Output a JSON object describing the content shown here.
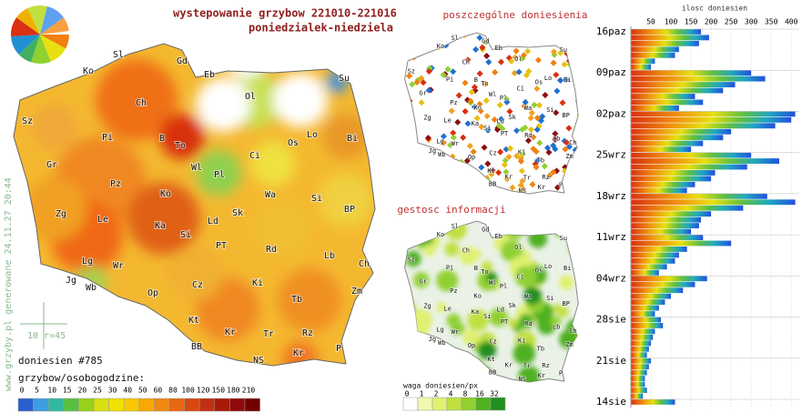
{
  "title": "wystepowanie grzybow 221010-221016",
  "subtitle": "poniedzialek-niedziela",
  "watermark": "www.grzyby.pl generowane 24.11.27 20:44",
  "main_map": {
    "regions": [
      "Ko",
      "Sl",
      "Gd",
      "Eb",
      "Su",
      "Ol",
      "Ch",
      "Sz",
      "Pi",
      "B",
      "To",
      "Os",
      "Lo",
      "Bi",
      "Gr",
      "Wl",
      "Pl",
      "Ci",
      "Pz",
      "Ko",
      "Wa",
      "Si",
      "Zg",
      "Le",
      "Ka",
      "Sk",
      "BP",
      "Ld",
      "Si",
      "PT",
      "Rd",
      "Lb",
      "Lg",
      "Wr",
      "Ch",
      "Jg",
      "Wb",
      "Op",
      "Cz",
      "Ki",
      "Zm",
      "Kt",
      "Tb",
      "Kr",
      "Tr",
      "Rz",
      "BB",
      "NS",
      "Kr",
      "P"
    ],
    "scale_note": "10 r=45",
    "report_count": "doniesien #785",
    "legend_title": "grzybow/osobogodzine:",
    "legend_values": [
      0,
      5,
      10,
      15,
      20,
      25,
      30,
      40,
      50,
      60,
      80,
      100,
      120,
      150,
      180,
      210
    ],
    "legend_colors": [
      "#2a5fd0",
      "#3c9ee0",
      "#30b8a0",
      "#58c040",
      "#98d020",
      "#d8e010",
      "#f0e000",
      "#f8c800",
      "#f8a800",
      "#f08810",
      "#e86810",
      "#d84810",
      "#c03010",
      "#a81808",
      "#900808",
      "#700000"
    ]
  },
  "reports_map": {
    "title": "poszczególne doniesienia"
  },
  "density_map": {
    "title": "gestosc informacji",
    "legend_title": "waga doniesien/px",
    "legend_values": [
      0,
      1,
      2,
      4,
      8,
      16,
      32
    ],
    "legend_colors": [
      "#ffffff",
      "#f0f8b0",
      "#e0f070",
      "#c0e040",
      "#90d030",
      "#50b020",
      "#209020"
    ]
  },
  "chart_data": {
    "type": "bar",
    "orientation": "horizontal",
    "title": "ilosc doniesien",
    "categories": [
      "16paz",
      null,
      null,
      null,
      null,
      null,
      null,
      "09paz",
      null,
      null,
      null,
      null,
      null,
      null,
      "02paz",
      null,
      null,
      null,
      null,
      null,
      null,
      "25wrz",
      null,
      null,
      null,
      null,
      null,
      null,
      "18wrz",
      null,
      null,
      null,
      null,
      null,
      null,
      "11wrz",
      null,
      null,
      null,
      null,
      null,
      null,
      "04wrz",
      null,
      null,
      null,
      null,
      null,
      null,
      "28sie",
      null,
      null,
      null,
      null,
      null,
      null,
      "21sie",
      null,
      null,
      null,
      null,
      null,
      null,
      "14sie"
    ],
    "values": [
      175,
      195,
      170,
      120,
      110,
      60,
      50,
      300,
      335,
      260,
      230,
      160,
      180,
      120,
      410,
      400,
      360,
      250,
      230,
      180,
      150,
      300,
      370,
      290,
      210,
      200,
      160,
      140,
      340,
      410,
      280,
      200,
      175,
      170,
      150,
      180,
      250,
      140,
      120,
      110,
      90,
      70,
      190,
      160,
      130,
      100,
      85,
      70,
      60,
      75,
      80,
      60,
      55,
      50,
      45,
      40,
      50,
      45,
      40,
      35,
      35,
      40,
      30,
      110
    ],
    "xlim": [
      0,
      420
    ],
    "xticks": [
      50,
      100,
      150,
      200,
      250,
      300,
      350,
      400
    ]
  }
}
